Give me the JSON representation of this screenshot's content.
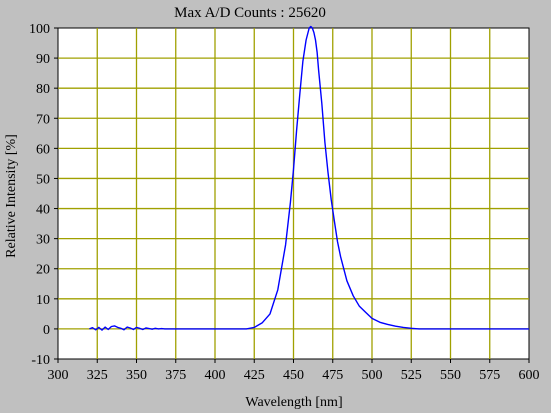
{
  "chart_data": {
    "type": "line",
    "title": "Max A/D Counts : 25620",
    "xlabel": "Wavelength [nm]",
    "ylabel": "Relative Intensity [%]",
    "xlim": [
      300,
      600
    ],
    "ylim": [
      -10,
      100
    ],
    "x_ticks": [
      300,
      325,
      350,
      375,
      400,
      425,
      450,
      475,
      500,
      525,
      550,
      575,
      600
    ],
    "y_ticks": [
      -10,
      0,
      10,
      20,
      30,
      40,
      50,
      60,
      70,
      80,
      90,
      100
    ],
    "grid": true,
    "colors": {
      "background": "#c0c0c0",
      "plot_area": "#ffffff",
      "grid": "#a0a000",
      "series": "#0000ff"
    },
    "series": [
      {
        "x": [
          320,
          322,
          324,
          326,
          328,
          330,
          332,
          334,
          336,
          338,
          340,
          342,
          344,
          346,
          348,
          350,
          352,
          354,
          356,
          358,
          360,
          362,
          364,
          366,
          368,
          370,
          380,
          390,
          400,
          410,
          420,
          425,
          430,
          435,
          440,
          445,
          448,
          450,
          452,
          454,
          456,
          458,
          460,
          461,
          462,
          463,
          464,
          465,
          466,
          468,
          470,
          472,
          474,
          476,
          478,
          480,
          484,
          488,
          492,
          496,
          500,
          505,
          510,
          515,
          520,
          525,
          530,
          540,
          560,
          580,
          600
        ],
        "y": [
          0,
          0.4,
          -0.3,
          0.5,
          -0.4,
          0.6,
          -0.2,
          0.8,
          1.0,
          0.5,
          0.2,
          -0.3,
          0.6,
          0.3,
          -0.2,
          0.5,
          0.2,
          -0.2,
          0.3,
          0.1,
          -0.1,
          0.2,
          0,
          0.1,
          0,
          0,
          0,
          0,
          0,
          0,
          0,
          0.5,
          2,
          5,
          13,
          28,
          42,
          53,
          66,
          78,
          89,
          96,
          100,
          100.5,
          100,
          98.5,
          96,
          92,
          86,
          75,
          62,
          52,
          43,
          36,
          29,
          24,
          16,
          11,
          7.5,
          5.5,
          3.5,
          2.2,
          1.5,
          0.9,
          0.5,
          0.2,
          0,
          0,
          0,
          0,
          0
        ]
      }
    ]
  }
}
